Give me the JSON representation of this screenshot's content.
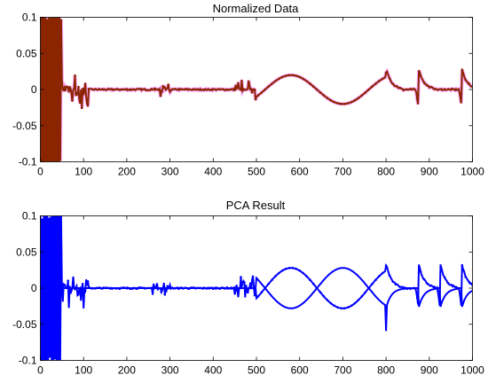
{
  "chart_data": [
    {
      "type": "line",
      "title": "Normalized Data",
      "xlim": [
        0,
        1000
      ],
      "ylim": [
        -0.1,
        0.1
      ],
      "x_ticks": [
        0,
        100,
        200,
        300,
        400,
        500,
        600,
        700,
        800,
        900,
        1000
      ],
      "y_ticks": [
        -0.1,
        -0.05,
        0,
        0.05,
        0.1
      ],
      "x_tick_labels": [
        "0",
        "100",
        "200",
        "300",
        "400",
        "500",
        "600",
        "700",
        "800",
        "900",
        "1000"
      ],
      "y_tick_labels": [
        "-0.1",
        "-0.05",
        "0",
        "0.05",
        "0.1"
      ],
      "grid": false,
      "legend": "none",
      "colors": {
        "raw": "#ff0000",
        "highlight": "#ff00ff",
        "overlay": "#8b2500"
      },
      "series": [
        {
          "color": "#ff0000",
          "segments": [
            {
              "x_range": [
                0,
                50
              ],
              "shape": "dense-oscillation",
              "amplitude": 0.1
            },
            {
              "x_range": [
                50,
                110
              ],
              "shape": "noise",
              "amplitude": 0.03
            },
            {
              "x_range": [
                260,
                300
              ],
              "shape": "noise",
              "amplitude": 0.012
            },
            {
              "x_range": [
                450,
                500
              ],
              "shape": "noise",
              "amplitude": 0.02
            },
            {
              "x_range": [
                500,
                800
              ],
              "shape": "sine",
              "amplitude": 0.02,
              "period": 240
            },
            {
              "x_range": [
                800,
                1000
              ],
              "shape": "spikes",
              "at": [
                800,
                875,
                975
              ],
              "amplitude": 0.03
            }
          ]
        }
      ]
    },
    {
      "type": "line",
      "title": "PCA Result",
      "xlim": [
        0,
        1000
      ],
      "ylim": [
        -0.1,
        0.1
      ],
      "x_ticks": [
        0,
        100,
        200,
        300,
        400,
        500,
        600,
        700,
        800,
        900,
        1000
      ],
      "y_ticks": [
        -0.1,
        -0.05,
        0,
        0.05,
        0.1
      ],
      "x_tick_labels": [
        "0",
        "100",
        "200",
        "300",
        "400",
        "500",
        "600",
        "700",
        "800",
        "900",
        "1000"
      ],
      "y_tick_labels": [
        "-0.1",
        "-0.05",
        "0",
        "0.05",
        "0.1"
      ],
      "grid": false,
      "legend": "none",
      "colors": {
        "main": "#0000ff"
      },
      "series": [
        {
          "color": "#0000ff",
          "segments": [
            {
              "x_range": [
                0,
                50
              ],
              "shape": "dense-oscillation",
              "amplitude": 0.1
            },
            {
              "x_range": [
                50,
                110
              ],
              "shape": "noise",
              "amplitude": 0.035
            },
            {
              "x_range": [
                260,
                300
              ],
              "shape": "noise",
              "amplitude": 0.012
            },
            {
              "x_range": [
                450,
                500
              ],
              "shape": "noise",
              "amplitude": 0.02
            },
            {
              "x_range": [
                500,
                800
              ],
              "shape": "sine-mirrored",
              "amplitude": 0.028,
              "period": 240
            },
            {
              "x_range": [
                800,
                1000
              ],
              "shape": "spikes-mirrored",
              "at": [
                800,
                875,
                925,
                975
              ],
              "amplitude": 0.035
            }
          ]
        }
      ]
    }
  ]
}
